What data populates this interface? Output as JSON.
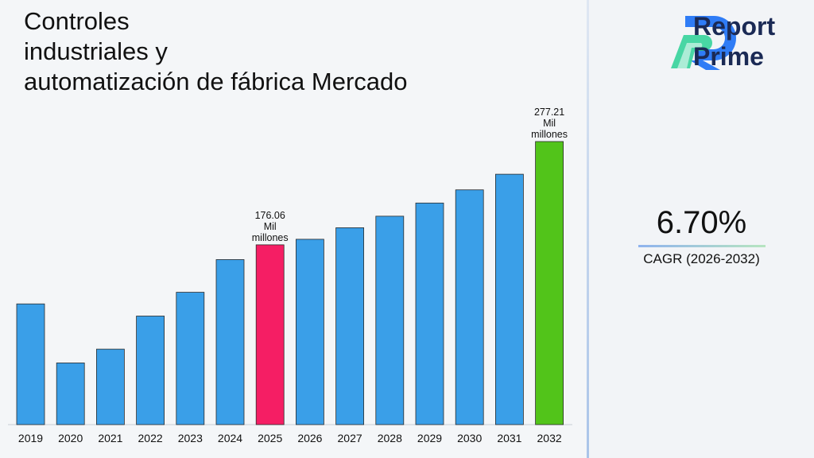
{
  "chart_data": {
    "type": "bar",
    "title_lines": [
      "Controles",
      "industriales y",
      "automatización de fábrica Mercado"
    ],
    "categories": [
      "2019",
      "2020",
      "2021",
      "2022",
      "2023",
      "2024",
      "2025",
      "2026",
      "2027",
      "2028",
      "2029",
      "2030",
      "2031",
      "2032"
    ],
    "values": [
      118.2,
      60.4,
      73.9,
      106.3,
      129.6,
      161.6,
      176.06,
      181.5,
      192.8,
      204.1,
      217.0,
      229.9,
      245.2,
      277.21
    ],
    "bar_colors": [
      "#3a9fe8",
      "#3a9fe8",
      "#3a9fe8",
      "#3a9fe8",
      "#3a9fe8",
      "#3a9fe8",
      "#f51e64",
      "#3a9fe8",
      "#3a9fe8",
      "#3a9fe8",
      "#3a9fe8",
      "#3a9fe8",
      "#3a9fe8",
      "#52c41a"
    ],
    "data_labels": [
      {
        "index": 6,
        "lines": [
          "176.06",
          "Mil",
          "millones"
        ]
      },
      {
        "index": 13,
        "lines": [
          "277.21",
          "Mil",
          "millones"
        ]
      }
    ],
    "ylim": [
      0,
      277.21
    ],
    "xlabel": "",
    "ylabel": "",
    "grid": false,
    "legend": "none"
  },
  "brand": {
    "line1": "Report",
    "line2": "Prime",
    "color": "#1b2a55",
    "logo_colors": [
      "#2f7cf6",
      "#35d39a"
    ]
  },
  "cagr": {
    "value": "6.70%",
    "label": "CAGR (2026-2032)"
  },
  "colors": {
    "bar_default": "#3a9fe8",
    "bar_highlight_current": "#f51e64",
    "bar_highlight_forecast": "#52c41a"
  }
}
